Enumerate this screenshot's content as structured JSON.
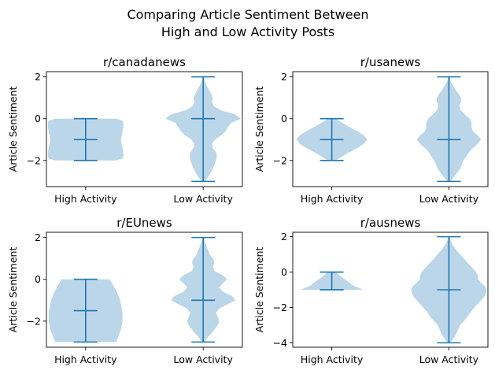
{
  "figure": {
    "title_line1": "Comparing Article Sentiment Between",
    "title_line2": "High and Low Activity Posts"
  },
  "colors": {
    "violin_fill": "#1f77b4",
    "violin_alpha": 0.3,
    "line": "#1f77b4",
    "axis": "#000000",
    "background": "#ffffff"
  },
  "chart_data": [
    {
      "type": "violin",
      "title": "r/canadanews",
      "ylabel": "Article Sentiment",
      "categories": [
        "High Activity",
        "Low Activity"
      ],
      "ylim": [
        -3.25,
        2.25
      ],
      "yticks": [
        -2,
        0,
        2
      ],
      "violins": [
        {
          "min": -2,
          "max": 0,
          "median": -1,
          "density": [
            [
              -2,
              0.38
            ],
            [
              -1.9,
              0.46
            ],
            [
              -1.8,
              0.47
            ],
            [
              -1.6,
              0.47
            ],
            [
              -1.4,
              0.46
            ],
            [
              -1.2,
              0.45
            ],
            [
              -1,
              0.44
            ],
            [
              -0.8,
              0.45
            ],
            [
              -0.6,
              0.46
            ],
            [
              -0.4,
              0.47
            ],
            [
              -0.2,
              0.47
            ],
            [
              -0.1,
              0.46
            ],
            [
              0,
              0.38
            ]
          ]
        },
        {
          "min": -3,
          "max": 2,
          "median": 0,
          "density": [
            [
              -3,
              0.02
            ],
            [
              -2.8,
              0.06
            ],
            [
              -2.6,
              0.09
            ],
            [
              -2.4,
              0.12
            ],
            [
              -2.2,
              0.14
            ],
            [
              -2,
              0.16
            ],
            [
              -1.8,
              0.17
            ],
            [
              -1.6,
              0.16
            ],
            [
              -1.4,
              0.12
            ],
            [
              -1.2,
              0.11
            ],
            [
              -1,
              0.15
            ],
            [
              -0.8,
              0.22
            ],
            [
              -0.6,
              0.28
            ],
            [
              -0.4,
              0.31
            ],
            [
              -0.2,
              0.35
            ],
            [
              0,
              0.47
            ],
            [
              0.2,
              0.4
            ],
            [
              0.4,
              0.22
            ],
            [
              0.6,
              0.13
            ],
            [
              0.8,
              0.11
            ],
            [
              1,
              0.12
            ],
            [
              1.2,
              0.1
            ],
            [
              1.4,
              0.07
            ],
            [
              1.6,
              0.04
            ],
            [
              1.8,
              0.02
            ],
            [
              2,
              0.01
            ]
          ]
        }
      ]
    },
    {
      "type": "violin",
      "title": "r/usanews",
      "ylabel": "Article Sentiment",
      "categories": [
        "High Activity",
        "Low Activity"
      ],
      "ylim": [
        -3.25,
        2.25
      ],
      "yticks": [
        -2,
        0,
        2
      ],
      "violins": [
        {
          "min": -2,
          "max": 0,
          "median": -1,
          "density": [
            [
              -2,
              0.05
            ],
            [
              -1.8,
              0.13
            ],
            [
              -1.6,
              0.22
            ],
            [
              -1.4,
              0.32
            ],
            [
              -1.2,
              0.4
            ],
            [
              -1,
              0.44
            ],
            [
              -0.8,
              0.4
            ],
            [
              -0.6,
              0.32
            ],
            [
              -0.4,
              0.22
            ],
            [
              -0.2,
              0.13
            ],
            [
              0,
              0.05
            ]
          ]
        },
        {
          "min": -3,
          "max": 2,
          "median": -1,
          "density": [
            [
              -3,
              0.02
            ],
            [
              -2.8,
              0.06
            ],
            [
              -2.6,
              0.1
            ],
            [
              -2.4,
              0.14
            ],
            [
              -2.2,
              0.16
            ],
            [
              -2,
              0.18
            ],
            [
              -1.8,
              0.22
            ],
            [
              -1.6,
              0.25
            ],
            [
              -1.4,
              0.3
            ],
            [
              -1.2,
              0.36
            ],
            [
              -1,
              0.4
            ],
            [
              -0.8,
              0.36
            ],
            [
              -0.6,
              0.3
            ],
            [
              -0.4,
              0.28
            ],
            [
              -0.2,
              0.28
            ],
            [
              0,
              0.26
            ],
            [
              0.2,
              0.2
            ],
            [
              0.4,
              0.15
            ],
            [
              0.6,
              0.13
            ],
            [
              0.8,
              0.15
            ],
            [
              1,
              0.15
            ],
            [
              1.2,
              0.12
            ],
            [
              1.4,
              0.08
            ],
            [
              1.6,
              0.05
            ],
            [
              1.8,
              0.02
            ],
            [
              2,
              0.01
            ]
          ]
        }
      ]
    },
    {
      "type": "violin",
      "title": "r/EUnews",
      "ylabel": "Article Sentiment",
      "categories": [
        "High Activity",
        "Low Activity"
      ],
      "ylim": [
        -3.25,
        2.25
      ],
      "yticks": [
        -2,
        0,
        2
      ],
      "violins": [
        {
          "min": -3,
          "max": 0,
          "median": -1.5,
          "density": [
            [
              -3,
              0.38
            ],
            [
              -2.8,
              0.4
            ],
            [
              -2.6,
              0.42
            ],
            [
              -2.4,
              0.44
            ],
            [
              -2.2,
              0.45
            ],
            [
              -2,
              0.46
            ],
            [
              -1.8,
              0.46
            ],
            [
              -1.6,
              0.46
            ],
            [
              -1.4,
              0.45
            ],
            [
              -1.2,
              0.44
            ],
            [
              -1,
              0.43
            ],
            [
              -0.8,
              0.41
            ],
            [
              -0.6,
              0.39
            ],
            [
              -0.4,
              0.36
            ],
            [
              -0.2,
              0.33
            ],
            [
              0,
              0.3
            ]
          ]
        },
        {
          "min": -3,
          "max": 2,
          "median": -1,
          "density": [
            [
              -3,
              0.02
            ],
            [
              -2.8,
              0.05
            ],
            [
              -2.6,
              0.1
            ],
            [
              -2.4,
              0.14
            ],
            [
              -2.2,
              0.18
            ],
            [
              -2,
              0.2
            ],
            [
              -1.8,
              0.18
            ],
            [
              -1.6,
              0.16
            ],
            [
              -1.4,
              0.2
            ],
            [
              -1.2,
              0.3
            ],
            [
              -1,
              0.4
            ],
            [
              -0.8,
              0.36
            ],
            [
              -0.6,
              0.25
            ],
            [
              -0.4,
              0.2
            ],
            [
              -0.2,
              0.24
            ],
            [
              0,
              0.3
            ],
            [
              0.2,
              0.24
            ],
            [
              0.4,
              0.14
            ],
            [
              0.6,
              0.12
            ],
            [
              0.8,
              0.14
            ],
            [
              1,
              0.12
            ],
            [
              1.2,
              0.08
            ],
            [
              1.4,
              0.06
            ],
            [
              1.6,
              0.04
            ],
            [
              1.8,
              0.02
            ],
            [
              2,
              0.01
            ]
          ]
        }
      ]
    },
    {
      "type": "violin",
      "title": "r/ausnews",
      "ylabel": "Article Sentiment",
      "categories": [
        "High Activity",
        "Low Activity"
      ],
      "ylim": [
        -4.25,
        2.25
      ],
      "yticks": [
        -4,
        -2,
        0,
        2
      ],
      "violins": [
        {
          "min": -1,
          "max": 0,
          "median": -1,
          "density": [
            [
              -1,
              0.38
            ],
            [
              -0.9,
              0.34
            ],
            [
              -0.8,
              0.28
            ],
            [
              -0.6,
              0.22
            ],
            [
              -0.4,
              0.16
            ],
            [
              -0.2,
              0.1
            ],
            [
              0,
              0.05
            ]
          ]
        },
        {
          "min": -4,
          "max": 2,
          "median": -1,
          "density": [
            [
              -4,
              0.02
            ],
            [
              -3.8,
              0.05
            ],
            [
              -3.6,
              0.08
            ],
            [
              -3.4,
              0.1
            ],
            [
              -3.2,
              0.12
            ],
            [
              -3,
              0.14
            ],
            [
              -2.8,
              0.18
            ],
            [
              -2.6,
              0.22
            ],
            [
              -2.4,
              0.25
            ],
            [
              -2.2,
              0.28
            ],
            [
              -2,
              0.32
            ],
            [
              -1.8,
              0.36
            ],
            [
              -1.6,
              0.4
            ],
            [
              -1.4,
              0.44
            ],
            [
              -1.2,
              0.46
            ],
            [
              -1,
              0.47
            ],
            [
              -0.8,
              0.45
            ],
            [
              -0.6,
              0.4
            ],
            [
              -0.4,
              0.36
            ],
            [
              -0.2,
              0.36
            ],
            [
              0,
              0.34
            ],
            [
              0.2,
              0.3
            ],
            [
              0.4,
              0.26
            ],
            [
              0.6,
              0.22
            ],
            [
              0.8,
              0.18
            ],
            [
              1,
              0.14
            ],
            [
              1.2,
              0.1
            ],
            [
              1.4,
              0.07
            ],
            [
              1.6,
              0.04
            ],
            [
              1.8,
              0.02
            ],
            [
              2,
              0.01
            ]
          ]
        }
      ]
    }
  ]
}
